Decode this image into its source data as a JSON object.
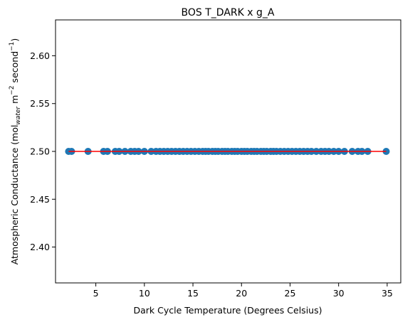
{
  "chart_data": {
    "type": "scatter",
    "title": "BOS T_DARK x g_A",
    "xlabel": "Dark Cycle Temperature (Degrees Celsius)",
    "ylabel": {
      "base": "Atmospheric Conductance (mol",
      "sub": "water",
      "mid1": " m",
      "sup1": "−2",
      "mid2": " second",
      "sup2": "−1",
      "end": ")"
    },
    "xlim": [
      0.85,
      36.4
    ],
    "ylim": [
      2.3625,
      2.6375
    ],
    "xticks": [
      5,
      10,
      15,
      20,
      25,
      30,
      35
    ],
    "yticks": [
      2.4,
      2.45,
      2.5,
      2.55,
      2.6
    ],
    "ytick_labels": [
      "2.40",
      "2.45",
      "2.50",
      "2.55",
      "2.60"
    ],
    "grid": false,
    "series": [
      {
        "kind": "points",
        "color": "#1f77b4",
        "x": [
          2.2,
          2.5,
          4.2,
          5.8,
          6.2,
          7.0,
          7.4,
          8.0,
          8.6,
          9.0,
          9.4,
          10.0,
          10.7,
          11.2,
          11.6,
          12.0,
          12.4,
          12.8,
          13.2,
          13.6,
          14.0,
          14.4,
          14.8,
          15.2,
          15.6,
          16.0,
          16.3,
          16.6,
          17.0,
          17.3,
          17.6,
          18.0,
          18.3,
          18.6,
          19.0,
          19.3,
          19.6,
          20.0,
          20.3,
          20.6,
          21.0,
          21.3,
          21.6,
          22.0,
          22.3,
          22.6,
          23.0,
          23.3,
          23.6,
          24.0,
          24.4,
          24.8,
          25.2,
          25.6,
          26.0,
          26.4,
          26.8,
          27.2,
          27.7,
          28.2,
          28.6,
          29.0,
          29.5,
          30.0,
          30.6,
          31.4,
          32.0,
          32.4,
          33.0,
          34.9
        ],
        "y": [
          2.5,
          2.5,
          2.5,
          2.5,
          2.5,
          2.5,
          2.5,
          2.5,
          2.5,
          2.5,
          2.5,
          2.5,
          2.5,
          2.5,
          2.5,
          2.5,
          2.5,
          2.5,
          2.5,
          2.5,
          2.5,
          2.5,
          2.5,
          2.5,
          2.5,
          2.5,
          2.5,
          2.5,
          2.5,
          2.5,
          2.5,
          2.5,
          2.5,
          2.5,
          2.5,
          2.5,
          2.5,
          2.5,
          2.5,
          2.5,
          2.5,
          2.5,
          2.5,
          2.5,
          2.5,
          2.5,
          2.5,
          2.5,
          2.5,
          2.5,
          2.5,
          2.5,
          2.5,
          2.5,
          2.5,
          2.5,
          2.5,
          2.5,
          2.5,
          2.5,
          2.5,
          2.5,
          2.5,
          2.5,
          2.5,
          2.5,
          2.5,
          2.5,
          2.5,
          2.5
        ]
      },
      {
        "kind": "line",
        "color": "#ff0000",
        "x": [
          2.2,
          34.9
        ],
        "y": [
          2.5,
          2.5
        ]
      }
    ]
  }
}
